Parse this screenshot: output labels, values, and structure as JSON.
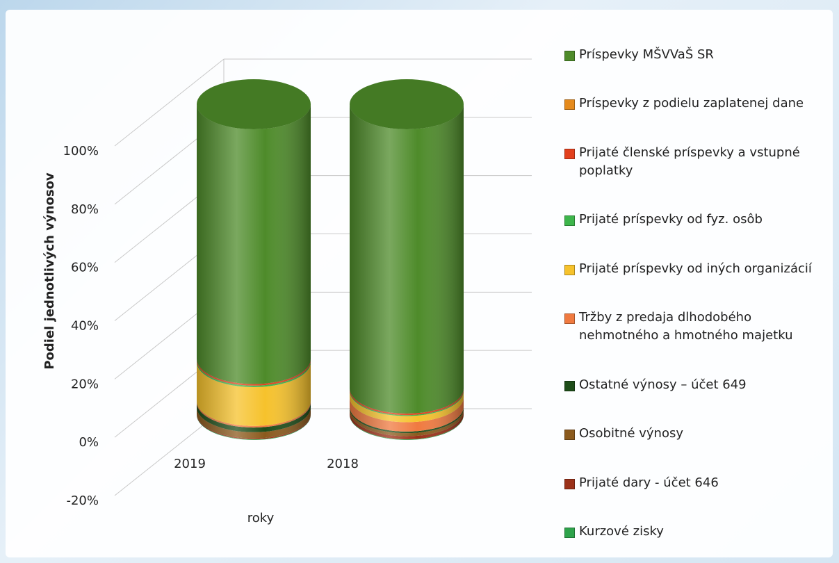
{
  "chart_data": {
    "type": "cylinder3d_stacked",
    "y_label": "Podiel jednotlivých výnosov",
    "x_label": "roky",
    "categories": [
      "2019",
      "2018"
    ],
    "ylim": [
      -20,
      100
    ],
    "yticks": [
      {
        "value": -20,
        "label": "-20%"
      },
      {
        "value": 0,
        "label": "0%"
      },
      {
        "value": 20,
        "label": "20%"
      },
      {
        "value": 40,
        "label": "40%"
      },
      {
        "value": 60,
        "label": "60%"
      },
      {
        "value": 80,
        "label": "80%"
      },
      {
        "value": 100,
        "label": "100%"
      }
    ],
    "grid": true,
    "legend": "right",
    "series": [
      {
        "name": "Príspevky MŠVVaŠ SR",
        "color": "#4e8b2a",
        "values": [
          82,
          91.5
        ]
      },
      {
        "name": "Príspevky z podielu zaplatenej dane",
        "color": "#e58a1c",
        "values": [
          0,
          0
        ]
      },
      {
        "name": "Prijaté členské príspevky a vstupné poplatky",
        "color": "#e2401d",
        "values": [
          0.5,
          0.5
        ]
      },
      {
        "name": "Prijaté príspevky od fyz. osôb",
        "color": "#3db54b",
        "values": [
          0.5,
          0.3
        ]
      },
      {
        "name": "Prijaté príspevky od iných organizácií",
        "color": "#f6c22c",
        "values": [
          12.5,
          2
        ]
      },
      {
        "name": "Tržby z predaja dlhodobého nehmotného a hmotného majetku",
        "color": "#f07a40",
        "values": [
          0.5,
          3
        ]
      },
      {
        "name": "Ostatné výnosy – účet 649",
        "color": "#1e4d19",
        "values": [
          1.5,
          0.5
        ]
      },
      {
        "name": "Osobitné výnosy",
        "color": "#8b5a1d",
        "values": [
          2,
          1
        ]
      },
      {
        "name": "Prijaté dary - účet 646",
        "color": "#9b3119",
        "values": [
          0.3,
          1
        ]
      },
      {
        "name": "Kurzové zisky",
        "color": "#2ea34b",
        "values": [
          0.2,
          0.2
        ]
      }
    ]
  }
}
